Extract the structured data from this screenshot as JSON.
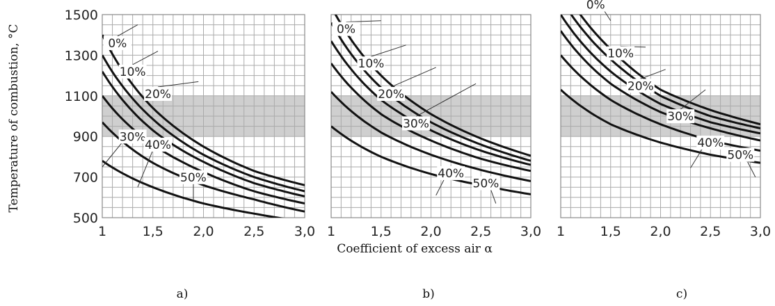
{
  "figure": {
    "ylabel": "Temperature of combustion, °C",
    "xlabel": "Coefficient of excess air α",
    "panel_captions": [
      "a)",
      "b)",
      "c)"
    ],
    "yticks": [
      "1500",
      "1300",
      "1100",
      "900",
      "700",
      "500"
    ],
    "xticks": [
      "1",
      "1,5",
      "2,0",
      "2,5",
      "3,0"
    ],
    "curve_labels": [
      "0%",
      "10%",
      "20%",
      "30%",
      "40%",
      "50%"
    ]
  },
  "chart_data": [
    {
      "type": "line",
      "panel": "a)",
      "xlabel": "Coefficient of excess air α",
      "ylabel": "Temperature of combustion, °C",
      "xlim": [
        1,
        3
      ],
      "ylim": [
        500,
        1500
      ],
      "grid": true,
      "band": [
        900,
        1100
      ],
      "x": [
        1.0,
        1.5,
        2.0,
        2.5,
        3.0
      ],
      "series": [
        {
          "name": "0%",
          "values": [
            1400,
            1040,
            850,
            730,
            660
          ]
        },
        {
          "name": "10%",
          "values": [
            1300,
            985,
            810,
            700,
            630
          ]
        },
        {
          "name": "20%",
          "values": [
            1220,
            930,
            775,
            670,
            605
          ]
        },
        {
          "name": "30%",
          "values": [
            1100,
            860,
            725,
            630,
            570
          ]
        },
        {
          "name": "40%",
          "values": [
            970,
            770,
            660,
            590,
            530
          ]
        },
        {
          "name": "50%",
          "values": [
            780,
            650,
            570,
            520,
            480
          ]
        }
      ]
    },
    {
      "type": "line",
      "panel": "b)",
      "xlabel": "Coefficient of excess air α",
      "ylabel": "Temperature of combustion, °C",
      "xlim": [
        1,
        3
      ],
      "ylim": [
        500,
        1500
      ],
      "grid": true,
      "band": [
        900,
        1100
      ],
      "x": [
        1.0,
        1.5,
        2.0,
        2.5,
        3.0
      ],
      "series": [
        {
          "name": "0%",
          "values": [
            1540,
            1200,
            1010,
            890,
            805
          ]
        },
        {
          "name": "10%",
          "values": [
            1460,
            1140,
            970,
            860,
            780
          ]
        },
        {
          "name": "20%",
          "values": [
            1370,
            1080,
            930,
            830,
            760
          ]
        },
        {
          "name": "30%",
          "values": [
            1260,
            1010,
            880,
            790,
            730
          ]
        },
        {
          "name": "40%",
          "values": [
            1120,
            920,
            810,
            735,
            680
          ]
        },
        {
          "name": "50%",
          "values": [
            950,
            800,
            715,
            660,
            615
          ]
        }
      ]
    },
    {
      "type": "line",
      "panel": "c)",
      "xlabel": "Coefficient of excess air α",
      "ylabel": "Temperature of combustion, °C",
      "xlim": [
        1,
        3
      ],
      "ylim": [
        500,
        1500
      ],
      "grid": true,
      "band": [
        900,
        1100
      ],
      "x": [
        1.0,
        1.5,
        2.0,
        2.5,
        3.0
      ],
      "series": [
        {
          "name": "0%",
          "values": [
            1650,
            1330,
            1130,
            1030,
            960
          ]
        },
        {
          "name": "10%",
          "values": [
            1580,
            1280,
            1100,
            1000,
            940
          ]
        },
        {
          "name": "20%",
          "values": [
            1500,
            1220,
            1060,
            970,
            915
          ]
        },
        {
          "name": "30%",
          "values": [
            1420,
            1160,
            1020,
            940,
            880
          ]
        },
        {
          "name": "40%",
          "values": [
            1300,
            1080,
            960,
            880,
            830
          ]
        },
        {
          "name": "50%",
          "values": [
            1130,
            960,
            870,
            810,
            770
          ]
        }
      ]
    }
  ]
}
